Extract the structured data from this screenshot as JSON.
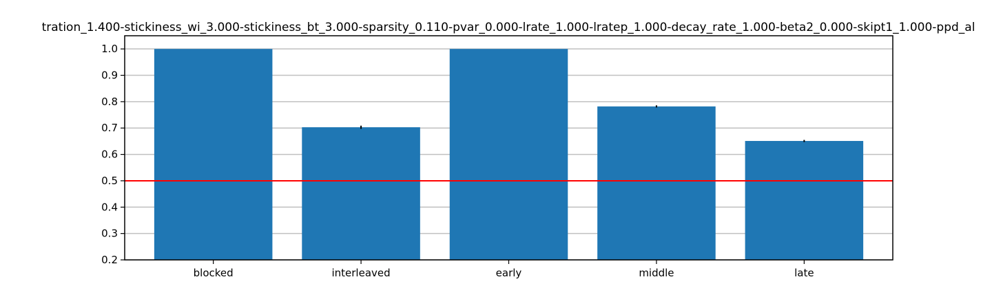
{
  "chart_data": {
    "type": "bar",
    "title": "tration_1.400-stickiness_wi_3.000-stickiness_bt_3.000-sparsity_0.110-pvar_0.000-lrate_1.000-lratep_1.000-decay_rate_1.000-beta2_0.000-skipt1_1.000-ppd_al",
    "xlabel": "",
    "ylabel": "",
    "categories": [
      "blocked",
      "interleaved",
      "early",
      "middle",
      "late"
    ],
    "values": [
      1.0,
      0.703,
      1.0,
      0.782,
      0.651
    ],
    "errors": [
      0.0,
      0.006,
      0.0,
      0.004,
      0.004
    ],
    "ylim": [
      0.2,
      1.05
    ],
    "yticks": [
      "0.2",
      "0.3",
      "0.4",
      "0.5",
      "0.6",
      "0.7",
      "0.8",
      "0.9",
      "1.0"
    ],
    "reference_line": 0.5,
    "grid": "horizontal",
    "legend": "none",
    "colors": {
      "bar": "#1f77b4",
      "grid": "#c0c0c0",
      "reference_line": "#ff0000",
      "error_bar": "#000000"
    }
  }
}
